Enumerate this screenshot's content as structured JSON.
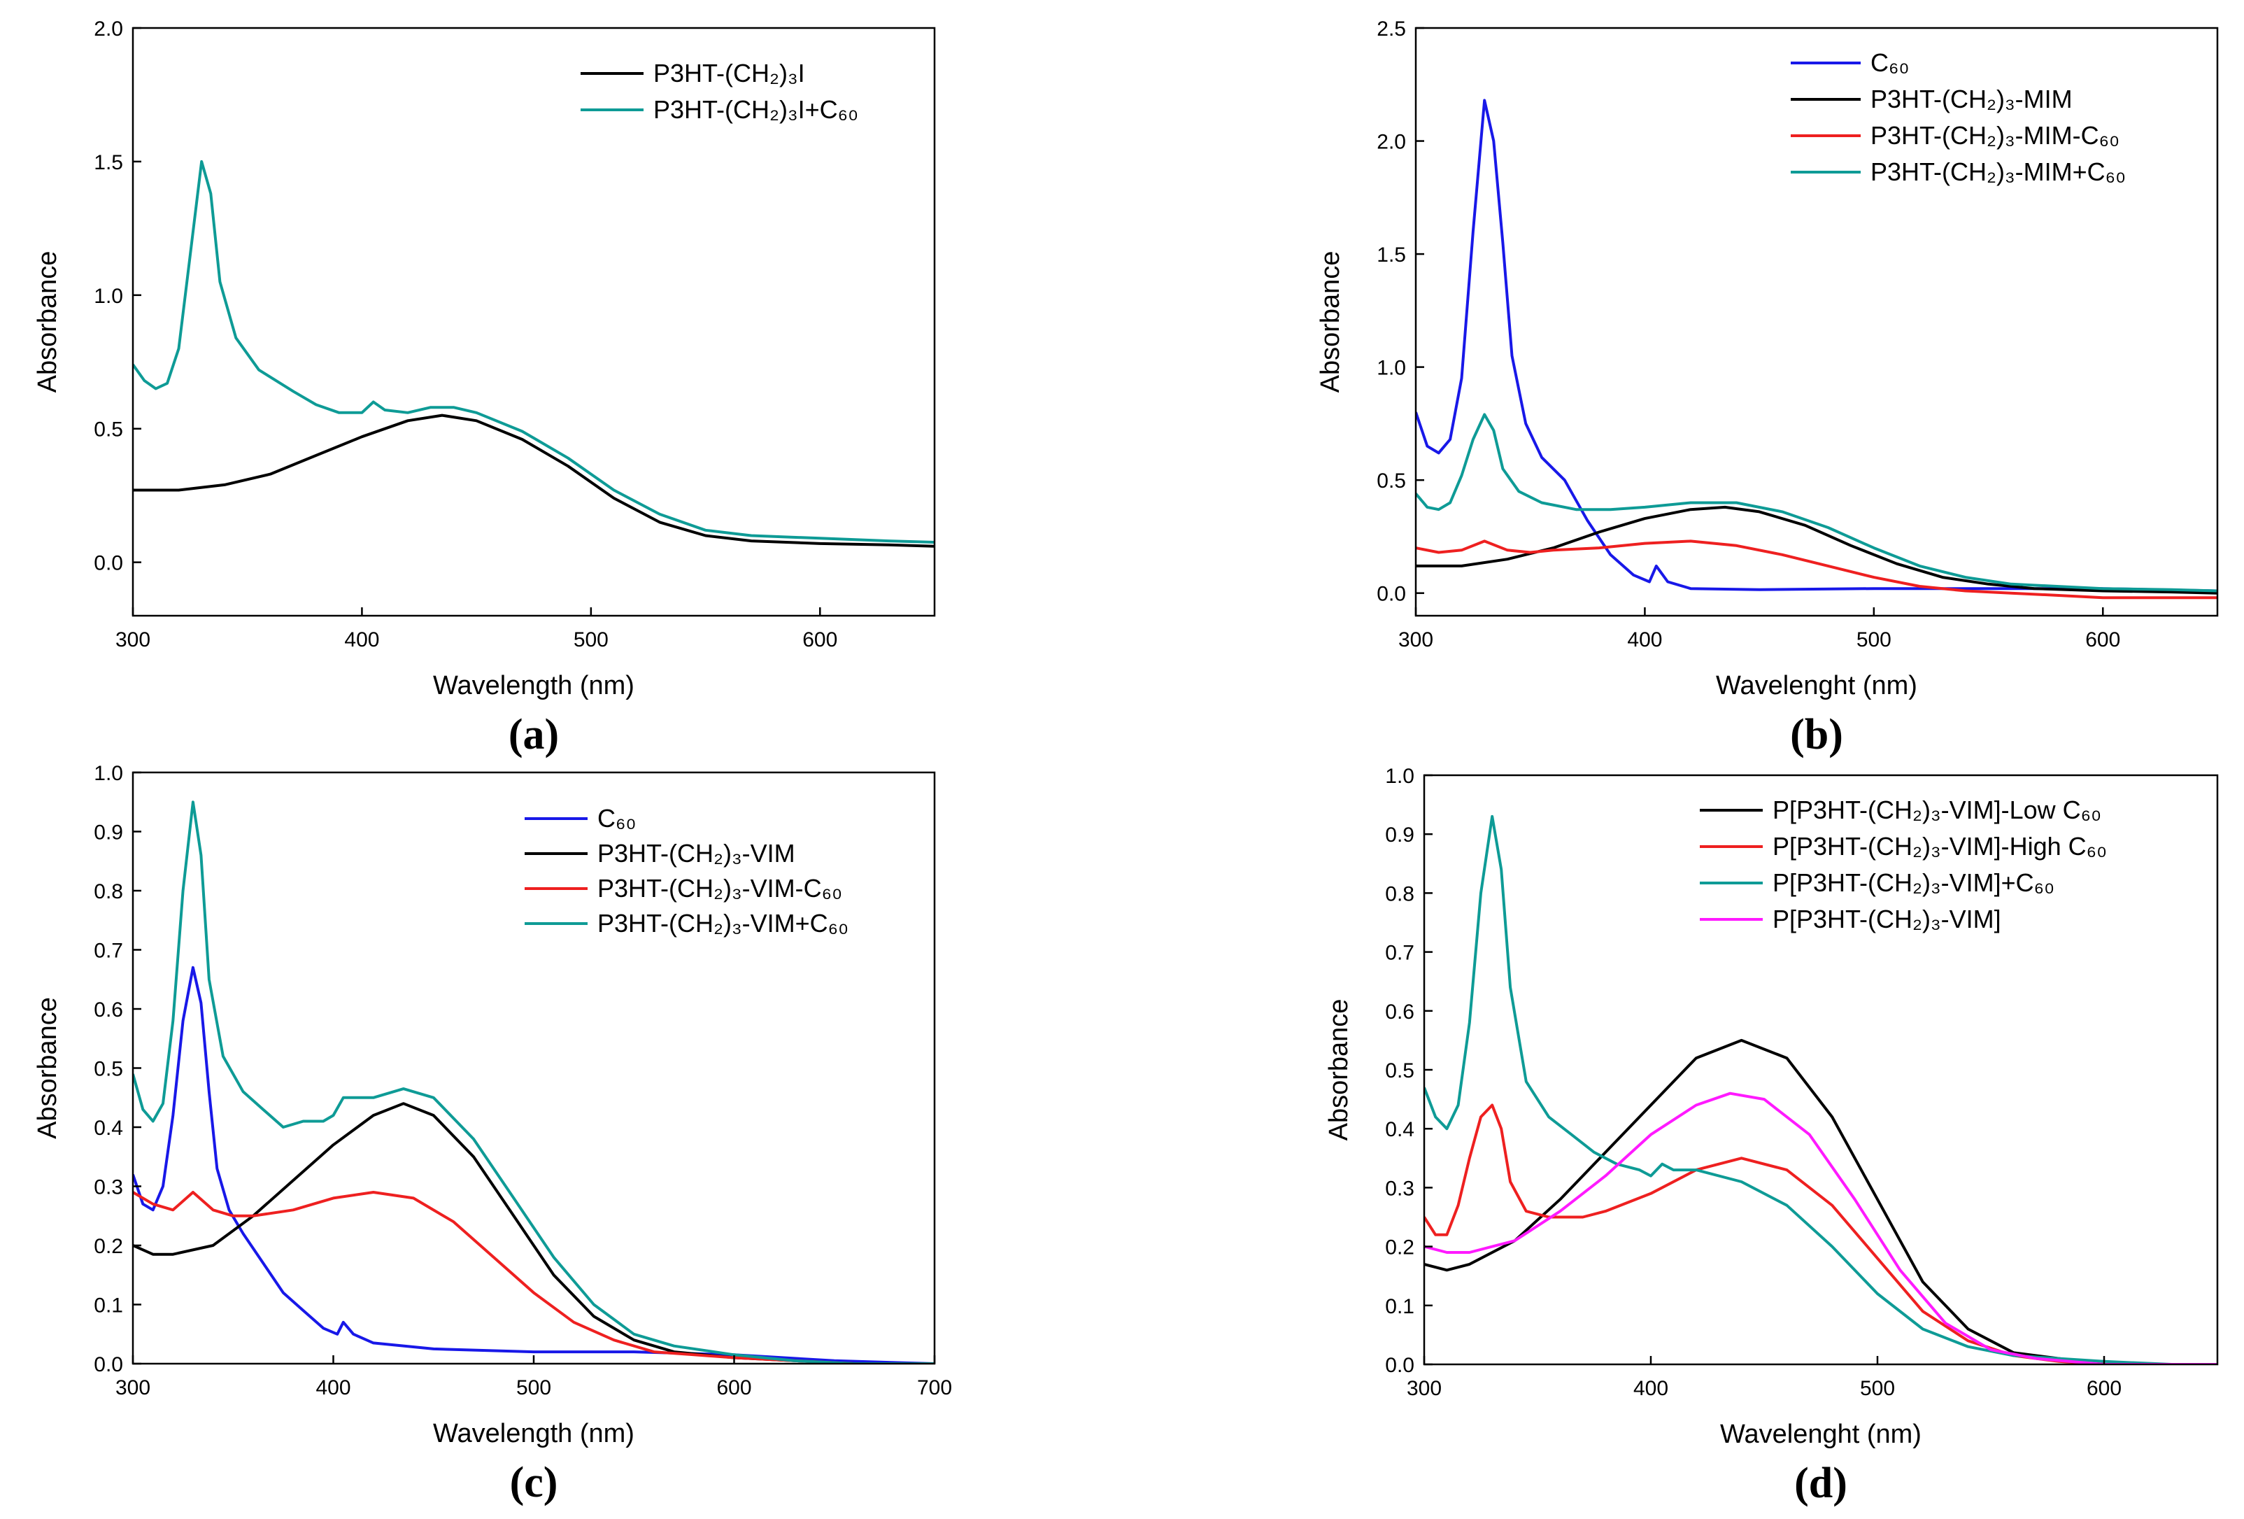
{
  "chart_data": [
    {
      "type": "line",
      "panel_label": "(a)",
      "xlabel": "Wavelength (nm)",
      "ylabel": "Absorbance",
      "xlim": [
        300,
        650
      ],
      "ylim": [
        -0.2,
        2.0
      ],
      "xticks": [
        300,
        400,
        500,
        600
      ],
      "yticks": [
        0.0,
        0.5,
        1.0,
        1.5,
        2.0
      ],
      "ytick_labels": [
        "0.0",
        "0.5",
        "1.0",
        "1.5",
        "2.0"
      ],
      "legend_position": "top-right",
      "series": [
        {
          "name": "P3HT-(CH₂)₃I",
          "color": "#000000",
          "x": [
            300,
            320,
            340,
            360,
            380,
            400,
            420,
            435,
            450,
            470,
            490,
            510,
            530,
            550,
            570,
            600,
            630,
            650
          ],
          "y": [
            0.27,
            0.27,
            0.29,
            0.33,
            0.4,
            0.47,
            0.53,
            0.55,
            0.53,
            0.46,
            0.36,
            0.24,
            0.15,
            0.1,
            0.08,
            0.07,
            0.065,
            0.06
          ]
        },
        {
          "name": "P3HT-(CH₂)₃I+C₆₀",
          "color": "#0e9b96",
          "x": [
            300,
            305,
            310,
            315,
            320,
            325,
            330,
            334,
            338,
            345,
            355,
            370,
            380,
            390,
            400,
            405,
            410,
            420,
            430,
            440,
            450,
            470,
            490,
            510,
            530,
            550,
            570,
            600,
            630,
            650
          ],
          "y": [
            0.74,
            0.68,
            0.65,
            0.67,
            0.8,
            1.15,
            1.5,
            1.38,
            1.05,
            0.84,
            0.72,
            0.64,
            0.59,
            0.56,
            0.56,
            0.6,
            0.57,
            0.56,
            0.58,
            0.58,
            0.56,
            0.49,
            0.39,
            0.27,
            0.18,
            0.12,
            0.1,
            0.09,
            0.08,
            0.075
          ]
        }
      ]
    },
    {
      "type": "line",
      "panel_label": "(b)",
      "xlabel": "Wavelenght (nm)",
      "ylabel": "Absorbance",
      "xlim": [
        300,
        650
      ],
      "ylim": [
        -0.1,
        2.5
      ],
      "xticks": [
        300,
        400,
        500,
        600
      ],
      "yticks": [
        0.0,
        0.5,
        1.0,
        1.5,
        2.0,
        2.5
      ],
      "ytick_labels": [
        "0.0",
        "0.5",
        "1.0",
        "1.5",
        "2.0",
        "2.5"
      ],
      "legend_position": "top-right",
      "series": [
        {
          "name": "C₆₀",
          "color": "#1818e8",
          "x": [
            300,
            305,
            310,
            315,
            320,
            325,
            330,
            334,
            338,
            342,
            348,
            355,
            365,
            375,
            385,
            395,
            402,
            405,
            410,
            420,
            450,
            500,
            550,
            600,
            650
          ],
          "y": [
            0.8,
            0.65,
            0.62,
            0.68,
            0.95,
            1.6,
            2.18,
            2.0,
            1.55,
            1.05,
            0.75,
            0.6,
            0.5,
            0.32,
            0.17,
            0.08,
            0.05,
            0.12,
            0.05,
            0.02,
            0.015,
            0.02,
            0.02,
            0.02,
            0.01
          ]
        },
        {
          "name": "P3HT-(CH₂)₃-MIM",
          "color": "#000000",
          "x": [
            300,
            320,
            340,
            360,
            380,
            400,
            420,
            435,
            450,
            470,
            490,
            510,
            530,
            550,
            570,
            600,
            630,
            650
          ],
          "y": [
            0.12,
            0.12,
            0.15,
            0.2,
            0.27,
            0.33,
            0.37,
            0.38,
            0.36,
            0.3,
            0.21,
            0.13,
            0.07,
            0.04,
            0.02,
            0.01,
            0.005,
            0.0
          ]
        },
        {
          "name": "P3HT-(CH₂)₃-MIM-C₆₀",
          "color": "#ee2020",
          "x": [
            300,
            310,
            320,
            330,
            340,
            350,
            360,
            380,
            400,
            420,
            440,
            460,
            480,
            500,
            520,
            540,
            560,
            580,
            600,
            630,
            650
          ],
          "y": [
            0.2,
            0.18,
            0.19,
            0.23,
            0.19,
            0.18,
            0.19,
            0.2,
            0.22,
            0.23,
            0.21,
            0.17,
            0.12,
            0.07,
            0.03,
            0.01,
            0.0,
            -0.01,
            -0.02,
            -0.02,
            -0.02
          ]
        },
        {
          "name": "P3HT-(CH₂)₃-MIM+C₆₀",
          "color": "#0e9b96",
          "x": [
            300,
            305,
            310,
            315,
            320,
            325,
            330,
            334,
            338,
            345,
            355,
            370,
            385,
            400,
            420,
            440,
            460,
            480,
            500,
            520,
            540,
            560,
            580,
            600,
            630,
            650
          ],
          "y": [
            0.44,
            0.38,
            0.37,
            0.4,
            0.52,
            0.68,
            0.79,
            0.72,
            0.55,
            0.45,
            0.4,
            0.37,
            0.37,
            0.38,
            0.4,
            0.4,
            0.36,
            0.29,
            0.2,
            0.12,
            0.07,
            0.04,
            0.03,
            0.02,
            0.015,
            0.01
          ]
        }
      ]
    },
    {
      "type": "line",
      "panel_label": "(c)",
      "xlabel": "Wavelength (nm)",
      "ylabel": "Absorbance",
      "xlim": [
        300,
        700
      ],
      "ylim": [
        0.0,
        1.0
      ],
      "xticks": [
        300,
        400,
        500,
        600,
        700
      ],
      "yticks": [
        0.0,
        0.1,
        0.2,
        0.3,
        0.4,
        0.5,
        0.6,
        0.7,
        0.8,
        0.9,
        1.0
      ],
      "ytick_labels": [
        "0.0",
        "0.1",
        "0.2",
        "0.3",
        "0.4",
        "0.5",
        "0.6",
        "0.7",
        "0.8",
        "0.9",
        "1.0"
      ],
      "legend_position": "top-right",
      "series": [
        {
          "name": "C₆₀",
          "color": "#1818e8",
          "x": [
            300,
            305,
            310,
            315,
            320,
            325,
            330,
            334,
            338,
            342,
            348,
            355,
            365,
            375,
            385,
            395,
            402,
            405,
            410,
            420,
            450,
            500,
            550,
            600,
            650,
            700
          ],
          "y": [
            0.32,
            0.27,
            0.26,
            0.3,
            0.42,
            0.58,
            0.67,
            0.61,
            0.46,
            0.33,
            0.26,
            0.22,
            0.17,
            0.12,
            0.09,
            0.06,
            0.05,
            0.07,
            0.05,
            0.035,
            0.025,
            0.02,
            0.02,
            0.015,
            0.005,
            0.0
          ]
        },
        {
          "name": "P3HT-(CH₂)₃-VIM",
          "color": "#000000",
          "x": [
            300,
            310,
            320,
            340,
            360,
            380,
            400,
            420,
            435,
            450,
            470,
            490,
            510,
            530,
            550,
            570,
            600,
            630,
            660,
            700
          ],
          "y": [
            0.2,
            0.185,
            0.185,
            0.2,
            0.25,
            0.31,
            0.37,
            0.42,
            0.44,
            0.42,
            0.35,
            0.25,
            0.15,
            0.08,
            0.04,
            0.02,
            0.01,
            0.005,
            0.0,
            0.0
          ]
        },
        {
          "name": "P3HT-(CH₂)₃-VIM-C₆₀",
          "color": "#ee2020",
          "x": [
            300,
            310,
            320,
            330,
            340,
            350,
            360,
            380,
            400,
            420,
            440,
            460,
            480,
            500,
            520,
            540,
            560,
            580,
            600,
            630,
            660,
            700
          ],
          "y": [
            0.29,
            0.27,
            0.26,
            0.29,
            0.26,
            0.25,
            0.25,
            0.26,
            0.28,
            0.29,
            0.28,
            0.24,
            0.18,
            0.12,
            0.07,
            0.04,
            0.02,
            0.015,
            0.01,
            0.005,
            0.0,
            0.0
          ]
        },
        {
          "name": "P3HT-(CH₂)₃-VIM+C₆₀",
          "color": "#0e9b96",
          "x": [
            300,
            305,
            310,
            315,
            320,
            325,
            330,
            334,
            338,
            345,
            355,
            365,
            375,
            385,
            395,
            400,
            405,
            410,
            420,
            430,
            435,
            450,
            470,
            490,
            510,
            530,
            550,
            570,
            590,
            600,
            630,
            660,
            700
          ],
          "y": [
            0.49,
            0.43,
            0.41,
            0.44,
            0.58,
            0.8,
            0.95,
            0.86,
            0.65,
            0.52,
            0.46,
            0.43,
            0.4,
            0.41,
            0.41,
            0.42,
            0.45,
            0.45,
            0.45,
            0.46,
            0.465,
            0.45,
            0.38,
            0.28,
            0.18,
            0.1,
            0.05,
            0.03,
            0.02,
            0.015,
            0.005,
            0.0,
            0.0
          ]
        }
      ]
    },
    {
      "type": "line",
      "panel_label": "(d)",
      "xlabel": "Wavelenght (nm)",
      "ylabel": "Absorbance",
      "xlim": [
        300,
        650
      ],
      "ylim": [
        0.0,
        1.0
      ],
      "xticks": [
        300,
        400,
        500,
        600
      ],
      "yticks": [
        0.0,
        0.1,
        0.2,
        0.3,
        0.4,
        0.5,
        0.6,
        0.7,
        0.8,
        0.9,
        1.0
      ],
      "ytick_labels": [
        "0.0",
        "0.1",
        "0.2",
        "0.3",
        "0.4",
        "0.5",
        "0.6",
        "0.7",
        "0.8",
        "0.9",
        "1.0"
      ],
      "legend_position": "top-right",
      "series": [
        {
          "name": "P[P3HT-(CH₂)₃-VIM]-Low C₆₀",
          "color": "#000000",
          "x": [
            300,
            310,
            320,
            340,
            360,
            380,
            400,
            420,
            440,
            460,
            480,
            500,
            520,
            540,
            560,
            580,
            600,
            630,
            650
          ],
          "y": [
            0.17,
            0.16,
            0.17,
            0.21,
            0.28,
            0.36,
            0.44,
            0.52,
            0.55,
            0.52,
            0.42,
            0.28,
            0.14,
            0.06,
            0.02,
            0.01,
            0.0,
            0.0,
            0.0
          ]
        },
        {
          "name": "P[P3HT-(CH₂)₃-VIM]-High C₆₀",
          "color": "#ee2020",
          "x": [
            300,
            305,
            310,
            315,
            320,
            325,
            330,
            334,
            338,
            345,
            355,
            370,
            380,
            400,
            420,
            440,
            460,
            480,
            500,
            520,
            540,
            560,
            580,
            600,
            630,
            650
          ],
          "y": [
            0.25,
            0.22,
            0.22,
            0.27,
            0.35,
            0.42,
            0.44,
            0.4,
            0.31,
            0.26,
            0.25,
            0.25,
            0.26,
            0.29,
            0.33,
            0.35,
            0.33,
            0.27,
            0.18,
            0.09,
            0.04,
            0.015,
            0.005,
            0.0,
            0.0,
            0.0
          ]
        },
        {
          "name": "P[P3HT-(CH₂)₃-VIM]+C₆₀",
          "color": "#0e9b96",
          "x": [
            300,
            305,
            310,
            315,
            320,
            325,
            330,
            334,
            338,
            345,
            355,
            365,
            375,
            385,
            395,
            400,
            405,
            410,
            420,
            440,
            460,
            480,
            500,
            520,
            540,
            560,
            580,
            600,
            630,
            650
          ],
          "y": [
            0.47,
            0.42,
            0.4,
            0.44,
            0.58,
            0.8,
            0.93,
            0.84,
            0.64,
            0.48,
            0.42,
            0.39,
            0.36,
            0.34,
            0.33,
            0.32,
            0.34,
            0.33,
            0.33,
            0.31,
            0.27,
            0.2,
            0.12,
            0.06,
            0.03,
            0.015,
            0.01,
            0.005,
            0.0,
            0.0
          ]
        },
        {
          "name": "P[P3HT-(CH₂)₃-VIM]",
          "color": "#ff1aff",
          "x": [
            300,
            310,
            320,
            340,
            360,
            380,
            400,
            420,
            435,
            450,
            470,
            490,
            510,
            530,
            550,
            570,
            600,
            630,
            650
          ],
          "y": [
            0.2,
            0.19,
            0.19,
            0.21,
            0.26,
            0.32,
            0.39,
            0.44,
            0.46,
            0.45,
            0.39,
            0.28,
            0.16,
            0.07,
            0.025,
            0.01,
            0.0,
            0.0,
            0.0
          ]
        }
      ]
    }
  ]
}
